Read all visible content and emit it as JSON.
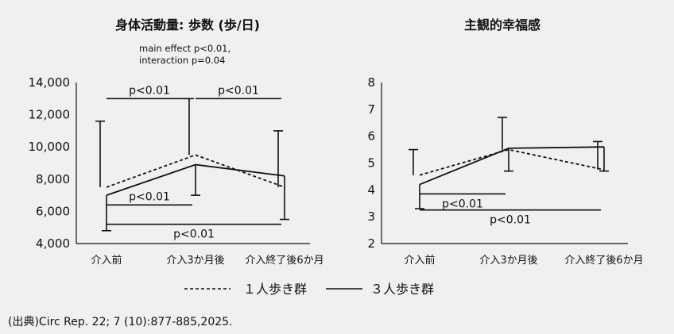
{
  "chart_data": [
    {
      "type": "line",
      "title": "身体活動量: 歩数 (歩/日)",
      "annotation_lines": [
        "main effect p<0.01,",
        "interaction p=0.04"
      ],
      "categories": [
        "介入前",
        "介入3か月後",
        "介入終了後6か月"
      ],
      "yticks": [
        "4,000",
        "6,000",
        "8,000",
        "10,000",
        "12,000",
        "14,000"
      ],
      "ylim": [
        4000,
        14000
      ],
      "grid": false,
      "series": [
        {
          "name": "１人歩き群",
          "style": "dashed",
          "values": [
            7500,
            9500,
            7500
          ],
          "error_upper": [
            11600,
            13000,
            11000
          ],
          "error_lower": [
            null,
            null,
            null
          ]
        },
        {
          "name": "３人歩き群",
          "style": "solid",
          "values": [
            7000,
            8900,
            8200
          ],
          "error_upper": [
            null,
            null,
            null
          ],
          "error_lower": [
            4800,
            7000,
            5500
          ]
        }
      ],
      "significance": [
        {
          "label": "p<0.01",
          "between": [
            0,
            1
          ],
          "y": 13000,
          "side": "above"
        },
        {
          "label": "p<0.01",
          "between": [
            1,
            2
          ],
          "y": 13000,
          "side": "above"
        },
        {
          "label": "p<0.01",
          "between": [
            0,
            1
          ],
          "y": 6400,
          "side": "above"
        },
        {
          "label": "p<0.01",
          "between": [
            0,
            2
          ],
          "y": 5200,
          "side": "below"
        }
      ]
    },
    {
      "type": "line",
      "title": "主観的幸福感",
      "categories": [
        "介入前",
        "介入3か月後",
        "介入終了後6か月"
      ],
      "yticks": [
        "2",
        "3",
        "4",
        "5",
        "6",
        "7",
        "8"
      ],
      "ylim": [
        2,
        8
      ],
      "grid": false,
      "series": [
        {
          "name": "１人歩き群",
          "style": "dashed",
          "values": [
            4.55,
            5.5,
            4.75
          ],
          "error_upper": [
            5.5,
            6.7,
            5.8
          ],
          "error_lower": [
            null,
            null,
            null
          ]
        },
        {
          "name": "３人歩き群",
          "style": "solid",
          "values": [
            4.2,
            5.55,
            5.6
          ],
          "error_upper": [
            null,
            null,
            null
          ],
          "error_lower": [
            3.3,
            4.7,
            4.7
          ]
        }
      ],
      "significance": [
        {
          "label": "p<0.01",
          "between": [
            0,
            1
          ],
          "y": 3.85,
          "side": "below"
        },
        {
          "label": "p<0.01",
          "between": [
            0,
            2
          ],
          "y": 3.25,
          "side": "below"
        }
      ]
    }
  ],
  "legend": [
    {
      "label": "１人歩き群",
      "style": "dashed"
    },
    {
      "label": "３人歩き群",
      "style": "solid"
    }
  ],
  "source": "(出典)Circ Rep.  22; 7 (10):877-885,2025."
}
